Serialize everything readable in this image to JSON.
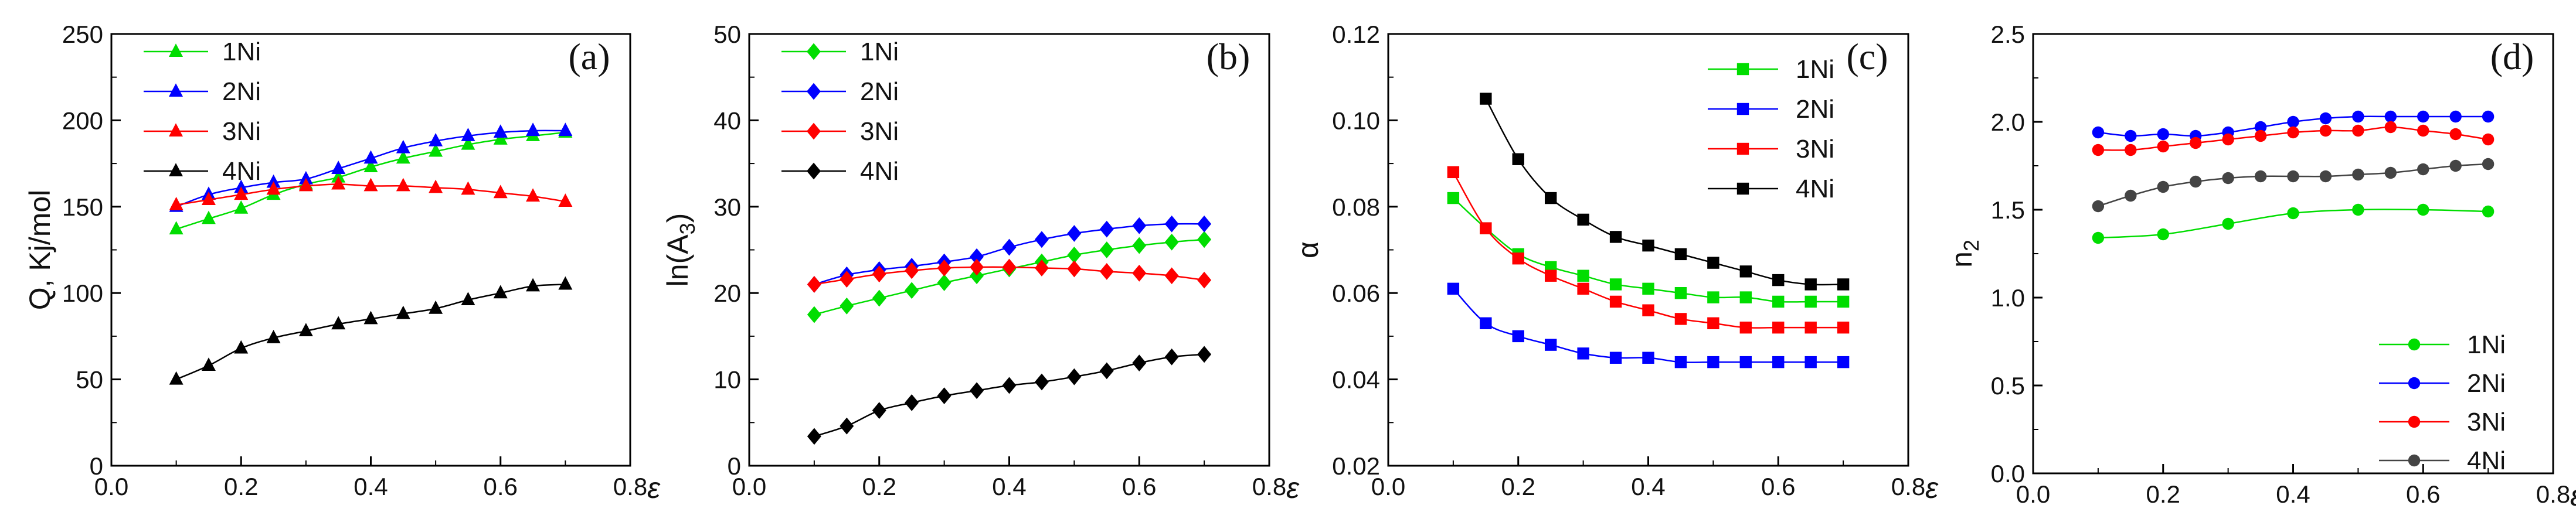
{
  "chart_data": [
    {
      "type": "line",
      "panel": "(a)",
      "xlabel": "ε",
      "ylabel": "Q, Kj/mol",
      "xlim": [
        0.0,
        0.8
      ],
      "ylim": [
        0,
        250
      ],
      "xticks": [
        0.0,
        0.2,
        0.4,
        0.6,
        0.8
      ],
      "yticks": [
        0,
        50,
        100,
        150,
        200,
        250
      ],
      "xtick_labels": [
        "0.0",
        "0.2",
        "0.4",
        "0.6",
        "0.8"
      ],
      "ytick_labels": [
        "0",
        "50",
        "100",
        "150",
        "200",
        "250"
      ],
      "marker": "triangle",
      "legend_position": "top-left",
      "x": [
        0.1,
        0.15,
        0.2,
        0.25,
        0.3,
        0.35,
        0.4,
        0.45,
        0.5,
        0.55,
        0.6,
        0.65,
        0.7
      ],
      "series": [
        {
          "name": "1Ni",
          "color": "#00dd00",
          "values": [
            137,
            143,
            149,
            157,
            163,
            167,
            173,
            178,
            182,
            186,
            189,
            191,
            193
          ]
        },
        {
          "name": "2Ni",
          "color": "#0000ff",
          "values": [
            150,
            157,
            161,
            164,
            166,
            172,
            178,
            184,
            188,
            191,
            193,
            194,
            194
          ]
        },
        {
          "name": "3Ni",
          "color": "#ff0000",
          "values": [
            151,
            154,
            157,
            160,
            162,
            163,
            162,
            162,
            161,
            160,
            158,
            156,
            153
          ]
        },
        {
          "name": "4Ni",
          "color": "#000000",
          "values": [
            50,
            58,
            68,
            74,
            78,
            82,
            85,
            88,
            91,
            96,
            100,
            104,
            105
          ]
        }
      ]
    },
    {
      "type": "line",
      "panel": "(b)",
      "xlabel": "ε",
      "ylabel": "ln(A3)",
      "ylabel_base": "ln(A",
      "ylabel_sub": "3",
      "ylabel_tail": ")",
      "xlim": [
        0.0,
        0.8
      ],
      "ylim": [
        0,
        50
      ],
      "xticks": [
        0.0,
        0.2,
        0.4,
        0.6,
        0.8
      ],
      "yticks": [
        0,
        10,
        20,
        30,
        40,
        50
      ],
      "xtick_labels": [
        "0.0",
        "0.2",
        "0.4",
        "0.6",
        "0.8"
      ],
      "ytick_labels": [
        "0",
        "10",
        "20",
        "30",
        "40",
        "50"
      ],
      "marker": "diamond",
      "legend_position": "top-left",
      "x": [
        0.1,
        0.15,
        0.2,
        0.25,
        0.3,
        0.35,
        0.4,
        0.45,
        0.5,
        0.55,
        0.6,
        0.65,
        0.7
      ],
      "series": [
        {
          "name": "1Ni",
          "color": "#00dd00",
          "values": [
            17.5,
            18.5,
            19.4,
            20.3,
            21.2,
            22.0,
            22.8,
            23.6,
            24.4,
            25.0,
            25.5,
            25.9,
            26.2
          ]
        },
        {
          "name": "2Ni",
          "color": "#0000ff",
          "values": [
            21.0,
            22.1,
            22.7,
            23.1,
            23.6,
            24.2,
            25.3,
            26.2,
            26.9,
            27.4,
            27.8,
            28.0,
            28.0
          ]
        },
        {
          "name": "3Ni",
          "color": "#ff0000",
          "values": [
            21.0,
            21.6,
            22.2,
            22.6,
            22.9,
            23.0,
            23.0,
            22.9,
            22.8,
            22.5,
            22.3,
            22.0,
            21.5
          ]
        },
        {
          "name": "4Ni",
          "color": "#000000",
          "values": [
            3.4,
            4.6,
            6.4,
            7.3,
            8.1,
            8.7,
            9.3,
            9.7,
            10.3,
            11.0,
            11.9,
            12.6,
            12.9
          ]
        }
      ]
    },
    {
      "type": "line",
      "panel": "(c)",
      "xlabel": "ε",
      "ylabel": "α",
      "xlim": [
        0.0,
        0.8
      ],
      "ylim": [
        0.02,
        0.12
      ],
      "xticks": [
        0.0,
        0.2,
        0.4,
        0.6,
        0.8
      ],
      "yticks": [
        0.02,
        0.04,
        0.06,
        0.08,
        0.1,
        0.12
      ],
      "xtick_labels": [
        "0.0",
        "0.2",
        "0.4",
        "0.6",
        "0.8"
      ],
      "ytick_labels": [
        "0.02",
        "0.04",
        "0.06",
        "0.08",
        "0.10",
        "0.12"
      ],
      "marker": "square",
      "legend_position": "top-right",
      "series": [
        {
          "name": "1Ni",
          "color": "#00dd00",
          "x": [
            0.1,
            0.15,
            0.2,
            0.25,
            0.3,
            0.35,
            0.4,
            0.45,
            0.5,
            0.55,
            0.6,
            0.65,
            0.7
          ],
          "values": [
            0.082,
            0.075,
            0.069,
            0.066,
            0.064,
            0.062,
            0.061,
            0.06,
            0.059,
            0.059,
            0.058,
            0.058,
            0.058
          ]
        },
        {
          "name": "2Ni",
          "color": "#0000ff",
          "x": [
            0.1,
            0.15,
            0.2,
            0.25,
            0.3,
            0.35,
            0.4,
            0.45,
            0.5,
            0.55,
            0.6,
            0.65,
            0.7
          ],
          "values": [
            0.061,
            0.053,
            0.05,
            0.048,
            0.046,
            0.045,
            0.045,
            0.044,
            0.044,
            0.044,
            0.044,
            0.044,
            0.044
          ]
        },
        {
          "name": "3Ni",
          "color": "#ff0000",
          "x": [
            0.1,
            0.15,
            0.2,
            0.25,
            0.3,
            0.35,
            0.4,
            0.45,
            0.5,
            0.55,
            0.6,
            0.65,
            0.7
          ],
          "values": [
            0.088,
            0.075,
            0.068,
            0.064,
            0.061,
            0.058,
            0.056,
            0.054,
            0.053,
            0.052,
            0.052,
            0.052,
            0.052
          ]
        },
        {
          "name": "4Ni",
          "color": "#000000",
          "x": [
            0.15,
            0.2,
            0.25,
            0.3,
            0.35,
            0.4,
            0.45,
            0.5,
            0.55,
            0.6,
            0.65,
            0.7
          ],
          "values": [
            0.105,
            0.091,
            0.082,
            0.077,
            0.073,
            0.071,
            0.069,
            0.067,
            0.065,
            0.063,
            0.062,
            0.062
          ]
        }
      ]
    },
    {
      "type": "line",
      "panel": "(d)",
      "xlabel": "ε",
      "ylabel": "n2",
      "ylabel_base": "n",
      "ylabel_sub": "2",
      "ylabel_tail": "",
      "xlim": [
        0.0,
        0.8
      ],
      "ylim": [
        0.0,
        2.5
      ],
      "xticks": [
        0.0,
        0.2,
        0.4,
        0.6,
        0.8
      ],
      "yticks": [
        0.0,
        0.5,
        1.0,
        1.5,
        2.0,
        2.5
      ],
      "xtick_labels": [
        "0.0",
        "0.2",
        "0.4",
        "0.6",
        "0.8"
      ],
      "ytick_labels": [
        "0.0",
        "0.5",
        "1.0",
        "1.5",
        "2.0",
        "2.5"
      ],
      "marker": "circle",
      "legend_position": "bottom-right",
      "series": [
        {
          "name": "1Ni",
          "color": "#00dd00",
          "x": [
            0.1,
            0.2,
            0.3,
            0.4,
            0.5,
            0.6,
            0.7
          ],
          "values": [
            1.34,
            1.36,
            1.42,
            1.48,
            1.5,
            1.5,
            1.49
          ]
        },
        {
          "name": "2Ni",
          "color": "#0000ff",
          "x": [
            0.1,
            0.15,
            0.2,
            0.25,
            0.3,
            0.35,
            0.4,
            0.45,
            0.5,
            0.55,
            0.6,
            0.65,
            0.7
          ],
          "values": [
            1.94,
            1.92,
            1.93,
            1.92,
            1.94,
            1.97,
            2.0,
            2.02,
            2.03,
            2.03,
            2.03,
            2.03,
            2.03
          ]
        },
        {
          "name": "3Ni",
          "color": "#ff0000",
          "x": [
            0.1,
            0.15,
            0.2,
            0.25,
            0.3,
            0.35,
            0.4,
            0.45,
            0.5,
            0.55,
            0.6,
            0.65,
            0.7
          ],
          "values": [
            1.84,
            1.84,
            1.86,
            1.88,
            1.9,
            1.92,
            1.94,
            1.95,
            1.95,
            1.97,
            1.95,
            1.93,
            1.9
          ]
        },
        {
          "name": "4Ni",
          "color": "#444444",
          "x": [
            0.1,
            0.15,
            0.2,
            0.25,
            0.3,
            0.35,
            0.4,
            0.45,
            0.5,
            0.55,
            0.6,
            0.65,
            0.7
          ],
          "values": [
            1.52,
            1.58,
            1.63,
            1.66,
            1.68,
            1.69,
            1.69,
            1.69,
            1.7,
            1.71,
            1.73,
            1.75,
            1.76
          ]
        }
      ]
    }
  ]
}
